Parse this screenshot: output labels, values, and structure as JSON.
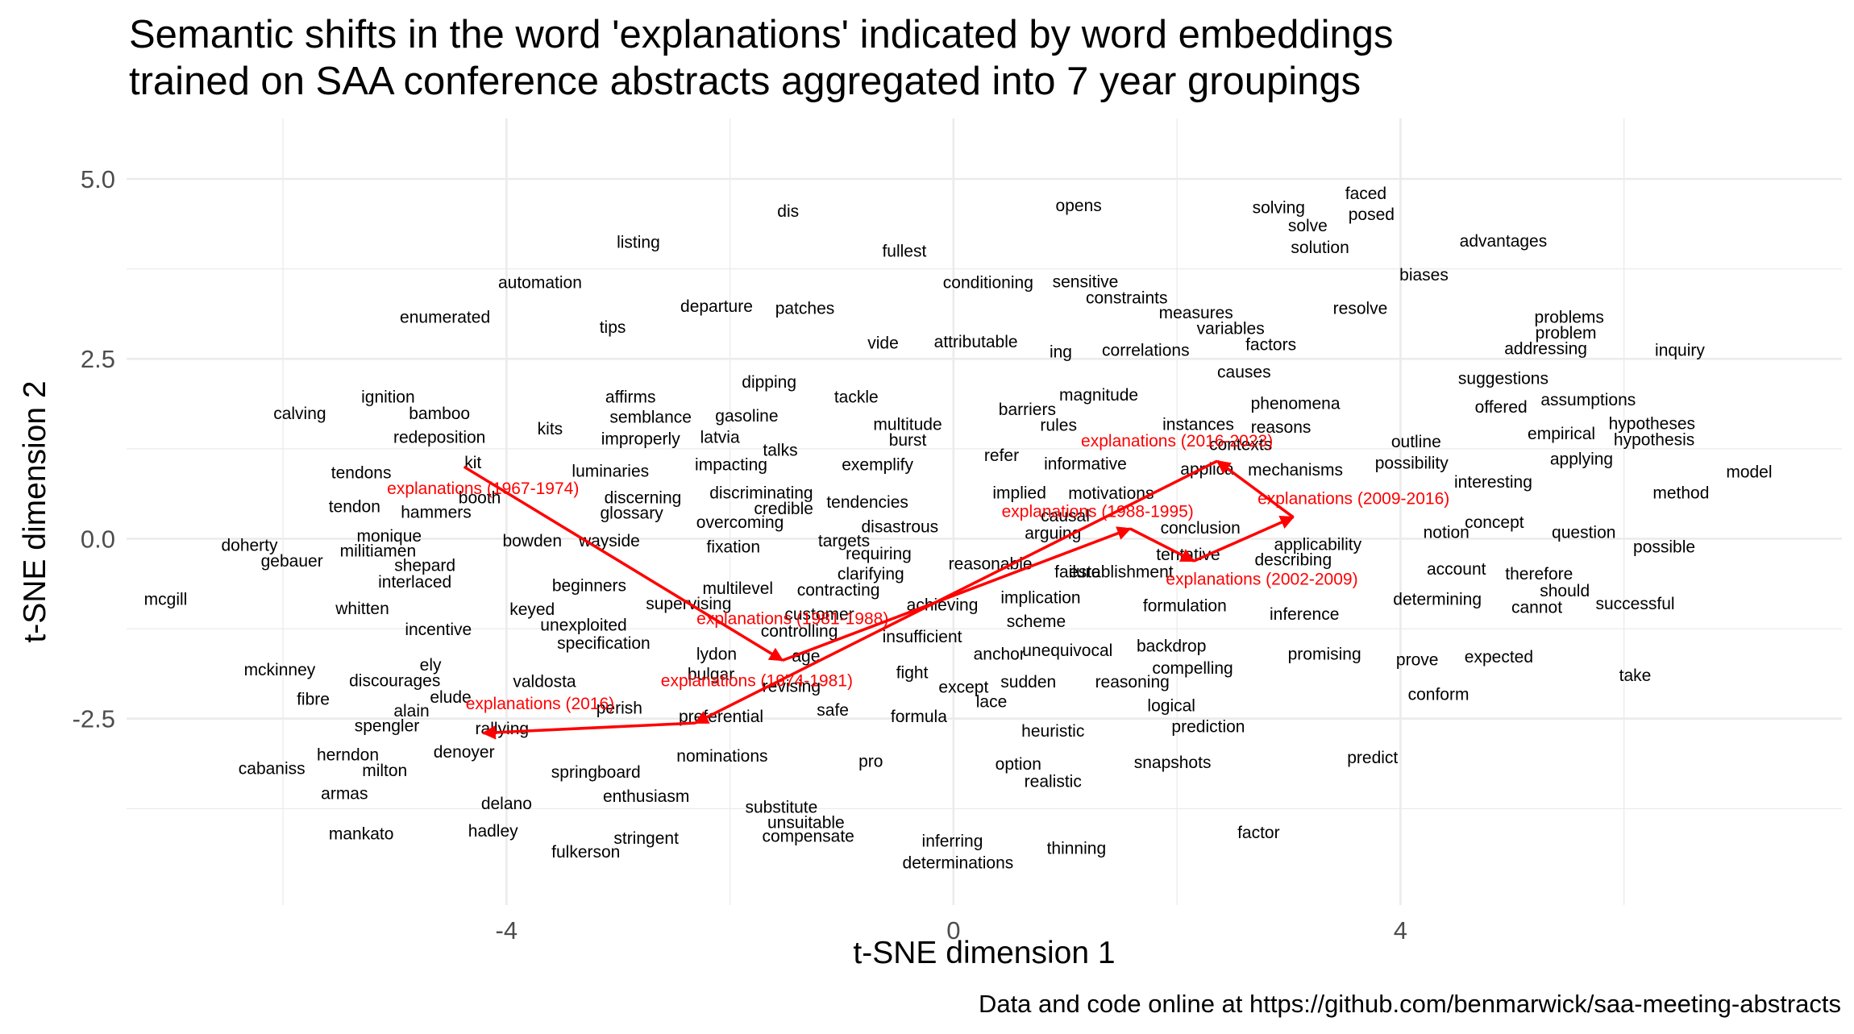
{
  "chart_data": {
    "type": "scatter",
    "title": "Semantic shifts in the word 'explanations' indicated by word embeddings\ntrained on SAA conference abstracts aggregated into 7 year groupings",
    "xlabel": "t-SNE dimension 1",
    "ylabel": "t-SNE dimension 2",
    "caption": "Data and code online at https://github.com/benmarwick/saa-meeting-abstracts",
    "xlim": [
      -7.4,
      7.95
    ],
    "ylim": [
      -5.09,
      5.84
    ],
    "xticks": [
      -4,
      0,
      4
    ],
    "yticks": [
      -2.5,
      0.0,
      2.5,
      5.0
    ],
    "ytick_labels": [
      "-2.5",
      "0.0",
      "2.5",
      "5.0"
    ],
    "grid": true,
    "colors": {
      "words": "#000000",
      "path": "#ff0000",
      "grid": "#ebebeb",
      "axis_text": "#4d4d4d"
    },
    "words": [
      {
        "text": "faced",
        "x": 3.69,
        "y": 4.8
      },
      {
        "text": "solving",
        "x": 2.91,
        "y": 4.6
      },
      {
        "text": "opens",
        "x": 1.12,
        "y": 4.63
      },
      {
        "text": "posed",
        "x": 3.74,
        "y": 4.51
      },
      {
        "text": "dis",
        "x": -1.48,
        "y": 4.55
      },
      {
        "text": "solve",
        "x": 3.17,
        "y": 4.35
      },
      {
        "text": "advantages",
        "x": 4.92,
        "y": 4.14
      },
      {
        "text": "listing",
        "x": -2.82,
        "y": 4.12
      },
      {
        "text": "solution",
        "x": 3.28,
        "y": 4.05
      },
      {
        "text": "fullest",
        "x": -0.44,
        "y": 4.0
      },
      {
        "text": "biases",
        "x": 4.21,
        "y": 3.67
      },
      {
        "text": "automation",
        "x": -3.7,
        "y": 3.56
      },
      {
        "text": "conditioning",
        "x": 0.31,
        "y": 3.56
      },
      {
        "text": "sensitive",
        "x": 1.18,
        "y": 3.57
      },
      {
        "text": "constraints",
        "x": 1.55,
        "y": 3.35
      },
      {
        "text": "resolve",
        "x": 3.64,
        "y": 3.2
      },
      {
        "text": "departure",
        "x": -2.12,
        "y": 3.23
      },
      {
        "text": "patches",
        "x": -1.33,
        "y": 3.2
      },
      {
        "text": "measures",
        "x": 2.17,
        "y": 3.14
      },
      {
        "text": "enumerated",
        "x": -4.55,
        "y": 3.08
      },
      {
        "text": "problems",
        "x": 5.51,
        "y": 3.08
      },
      {
        "text": "tips",
        "x": -3.05,
        "y": 2.94
      },
      {
        "text": "variables",
        "x": 2.48,
        "y": 2.92
      },
      {
        "text": "problem",
        "x": 5.48,
        "y": 2.86
      },
      {
        "text": "vide",
        "x": -0.63,
        "y": 2.72
      },
      {
        "text": "attributable",
        "x": 0.2,
        "y": 2.74
      },
      {
        "text": "factors",
        "x": 2.84,
        "y": 2.7
      },
      {
        "text": "ing",
        "x": 0.96,
        "y": 2.6
      },
      {
        "text": "correlations",
        "x": 1.72,
        "y": 2.62
      },
      {
        "text": "addressing",
        "x": 5.3,
        "y": 2.64
      },
      {
        "text": "inquiry",
        "x": 6.5,
        "y": 2.62
      },
      {
        "text": "causes",
        "x": 2.6,
        "y": 2.32
      },
      {
        "text": "suggestions",
        "x": 4.92,
        "y": 2.23
      },
      {
        "text": "dipping",
        "x": -1.65,
        "y": 2.18
      },
      {
        "text": "magnitude",
        "x": 1.3,
        "y": 2.0
      },
      {
        "text": "tackle",
        "x": -0.87,
        "y": 1.97
      },
      {
        "text": "affirms",
        "x": -2.89,
        "y": 1.97
      },
      {
        "text": "ignition",
        "x": -5.06,
        "y": 1.97
      },
      {
        "text": "phenomena",
        "x": 3.06,
        "y": 1.88
      },
      {
        "text": "assumptions",
        "x": 5.68,
        "y": 1.93
      },
      {
        "text": "offered",
        "x": 4.9,
        "y": 1.83
      },
      {
        "text": "calving",
        "x": -5.85,
        "y": 1.74
      },
      {
        "text": "bamboo",
        "x": -4.6,
        "y": 1.74
      },
      {
        "text": "semblance",
        "x": -2.71,
        "y": 1.69
      },
      {
        "text": "gasoline",
        "x": -1.85,
        "y": 1.71
      },
      {
        "text": "barriers",
        "x": 0.66,
        "y": 1.8
      },
      {
        "text": "multitude",
        "x": -0.41,
        "y": 1.59
      },
      {
        "text": "rules",
        "x": 0.94,
        "y": 1.58
      },
      {
        "text": "instances",
        "x": 2.19,
        "y": 1.59
      },
      {
        "text": "reasons",
        "x": 2.93,
        "y": 1.55
      },
      {
        "text": "hypotheses",
        "x": 6.25,
        "y": 1.6
      },
      {
        "text": "kits",
        "x": -3.61,
        "y": 1.53
      },
      {
        "text": "redeposition",
        "x": -4.6,
        "y": 1.41
      },
      {
        "text": "improperly",
        "x": -2.8,
        "y": 1.39
      },
      {
        "text": "latvia",
        "x": -2.09,
        "y": 1.41
      },
      {
        "text": "burst",
        "x": -0.41,
        "y": 1.37
      },
      {
        "text": "empirical",
        "x": 5.44,
        "y": 1.46
      },
      {
        "text": "hypothesis",
        "x": 6.27,
        "y": 1.38
      },
      {
        "text": "outline",
        "x": 4.14,
        "y": 1.35
      },
      {
        "text": "talks",
        "x": -1.55,
        "y": 1.23
      },
      {
        "text": "refer",
        "x": 0.43,
        "y": 1.16
      },
      {
        "text": "applying",
        "x": 5.62,
        "y": 1.11
      },
      {
        "text": "kit",
        "x": -4.3,
        "y": 1.06
      },
      {
        "text": "impacting",
        "x": -1.99,
        "y": 1.03
      },
      {
        "text": "exemplify",
        "x": -0.68,
        "y": 1.03
      },
      {
        "text": "informative",
        "x": 1.18,
        "y": 1.04
      },
      {
        "text": "possibility",
        "x": 4.1,
        "y": 1.05
      },
      {
        "text": "tendons",
        "x": -5.3,
        "y": 0.92
      },
      {
        "text": "luminaries",
        "x": -3.07,
        "y": 0.94
      },
      {
        "text": "mechanisms",
        "x": 3.06,
        "y": 0.96
      },
      {
        "text": "model",
        "x": 7.12,
        "y": 0.93
      },
      {
        "text": "interesting",
        "x": 4.83,
        "y": 0.79
      },
      {
        "text": "implied",
        "x": 0.59,
        "y": 0.64
      },
      {
        "text": "motivations",
        "x": 1.41,
        "y": 0.63
      },
      {
        "text": "discriminating",
        "x": -1.72,
        "y": 0.64
      },
      {
        "text": "method",
        "x": 6.51,
        "y": 0.64
      },
      {
        "text": "discerning",
        "x": -2.78,
        "y": 0.57
      },
      {
        "text": "tendencies",
        "x": -0.77,
        "y": 0.51
      },
      {
        "text": "booth",
        "x": -4.24,
        "y": 0.57
      },
      {
        "text": "credible",
        "x": -1.52,
        "y": 0.42
      },
      {
        "text": "tendon",
        "x": -5.36,
        "y": 0.45
      },
      {
        "text": "hammers",
        "x": -4.63,
        "y": 0.37
      },
      {
        "text": "glossary",
        "x": -2.88,
        "y": 0.36
      },
      {
        "text": "overcoming",
        "x": -1.91,
        "y": 0.23
      },
      {
        "text": "disastrous",
        "x": -0.48,
        "y": 0.17
      },
      {
        "text": "conclusion",
        "x": 2.21,
        "y": 0.15
      },
      {
        "text": "concept",
        "x": 4.84,
        "y": 0.23
      },
      {
        "text": "notion",
        "x": 4.41,
        "y": 0.09
      },
      {
        "text": "question",
        "x": 5.64,
        "y": 0.09
      },
      {
        "text": "arguing",
        "x": 0.89,
        "y": 0.08
      },
      {
        "text": "monique",
        "x": -5.05,
        "y": 0.04
      },
      {
        "text": "bowden",
        "x": -3.77,
        "y": -0.03
      },
      {
        "text": "wayside",
        "x": -3.08,
        "y": -0.03
      },
      {
        "text": "targets",
        "x": -0.98,
        "y": -0.03
      },
      {
        "text": "doherty",
        "x": -6.3,
        "y": -0.09
      },
      {
        "text": "fixation",
        "x": -1.97,
        "y": -0.11
      },
      {
        "text": "applicability",
        "x": 3.26,
        "y": -0.08
      },
      {
        "text": "possible",
        "x": 6.36,
        "y": -0.11
      },
      {
        "text": "militiamen",
        "x": -5.15,
        "y": -0.17
      },
      {
        "text": "requiring",
        "x": -0.67,
        "y": -0.21
      },
      {
        "text": "describing",
        "x": 3.04,
        "y": -0.29
      },
      {
        "text": "gebauer",
        "x": -5.92,
        "y": -0.31
      },
      {
        "text": "shepard",
        "x": -4.73,
        "y": -0.37
      },
      {
        "text": "reasonable",
        "x": 0.33,
        "y": -0.35
      },
      {
        "text": "clarifying",
        "x": -0.74,
        "y": -0.49
      },
      {
        "text": "failure",
        "x": 1.11,
        "y": -0.46
      },
      {
        "text": "account",
        "x": 4.5,
        "y": -0.42
      },
      {
        "text": "therefore",
        "x": 5.24,
        "y": -0.49
      },
      {
        "text": "interlaced",
        "x": -4.82,
        "y": -0.6
      },
      {
        "text": "beginners",
        "x": -3.26,
        "y": -0.65
      },
      {
        "text": "multilevel",
        "x": -1.93,
        "y": -0.69
      },
      {
        "text": "contracting",
        "x": -1.03,
        "y": -0.71
      },
      {
        "text": "should",
        "x": 5.47,
        "y": -0.72
      },
      {
        "text": "implication",
        "x": 0.78,
        "y": -0.82
      },
      {
        "text": "mcgill",
        "x": -7.05,
        "y": -0.84
      },
      {
        "text": "determining",
        "x": 4.33,
        "y": -0.84
      },
      {
        "text": "supervising",
        "x": -2.37,
        "y": -0.9
      },
      {
        "text": "achieving",
        "x": -0.1,
        "y": -0.92
      },
      {
        "text": "formulation",
        "x": 2.07,
        "y": -0.93
      },
      {
        "text": "successful",
        "x": 6.1,
        "y": -0.9
      },
      {
        "text": "cannot",
        "x": 5.22,
        "y": -0.95
      },
      {
        "text": "whitten",
        "x": -5.29,
        "y": -0.97
      },
      {
        "text": "keyed",
        "x": -3.77,
        "y": -0.98
      },
      {
        "text": "inference",
        "x": 3.14,
        "y": -1.05
      },
      {
        "text": "scheme",
        "x": 0.74,
        "y": -1.15
      },
      {
        "text": "unexploited",
        "x": -3.31,
        "y": -1.2
      },
      {
        "text": "incentive",
        "x": -4.61,
        "y": -1.26
      },
      {
        "text": "controlling",
        "x": -1.38,
        "y": -1.28
      },
      {
        "text": "insufficient",
        "x": -0.28,
        "y": -1.36
      },
      {
        "text": "specification",
        "x": -3.13,
        "y": -1.45
      },
      {
        "text": "backdrop",
        "x": 1.95,
        "y": -1.49
      },
      {
        "text": "anchor",
        "x": 0.41,
        "y": -1.6
      },
      {
        "text": "unequivocal",
        "x": 1.02,
        "y": -1.55
      },
      {
        "text": "promising",
        "x": 3.32,
        "y": -1.6
      },
      {
        "text": "lydon",
        "x": -2.12,
        "y": -1.6
      },
      {
        "text": "age",
        "x": -1.32,
        "y": -1.63
      },
      {
        "text": "ely",
        "x": -4.68,
        "y": -1.75
      },
      {
        "text": "expected",
        "x": 4.88,
        "y": -1.64
      },
      {
        "text": "prove",
        "x": 4.15,
        "y": -1.68
      },
      {
        "text": "compelling",
        "x": 2.14,
        "y": -1.8
      },
      {
        "text": "mckinney",
        "x": -6.03,
        "y": -1.82
      },
      {
        "text": "fight",
        "x": -0.37,
        "y": -1.86
      },
      {
        "text": "bulgar",
        "x": -2.17,
        "y": -1.88
      },
      {
        "text": "take",
        "x": 6.1,
        "y": -1.9
      },
      {
        "text": "discourages",
        "x": -5.0,
        "y": -1.97
      },
      {
        "text": "valdosta",
        "x": -3.66,
        "y": -1.98
      },
      {
        "text": "sudden",
        "x": 0.67,
        "y": -1.99
      },
      {
        "text": "reasoning",
        "x": 1.6,
        "y": -1.99
      },
      {
        "text": "except",
        "x": 0.09,
        "y": -2.06
      },
      {
        "text": "fibre",
        "x": -5.73,
        "y": -2.23
      },
      {
        "text": "elude",
        "x": -4.5,
        "y": -2.2
      },
      {
        "text": "conform",
        "x": 4.34,
        "y": -2.16
      },
      {
        "text": "lace",
        "x": 0.34,
        "y": -2.26
      },
      {
        "text": "logical",
        "x": 1.95,
        "y": -2.32
      },
      {
        "text": "alain",
        "x": -4.85,
        "y": -2.39
      },
      {
        "text": "perish",
        "x": -2.99,
        "y": -2.35
      },
      {
        "text": "safe",
        "x": -1.08,
        "y": -2.38
      },
      {
        "text": "preferential",
        "x": -2.08,
        "y": -2.47
      },
      {
        "text": "formula",
        "x": -0.31,
        "y": -2.47
      },
      {
        "text": "spengler",
        "x": -5.07,
        "y": -2.6
      },
      {
        "text": "rallying",
        "x": -4.04,
        "y": -2.64
      },
      {
        "text": "heuristic",
        "x": 0.89,
        "y": -2.67
      },
      {
        "text": "prediction",
        "x": 2.28,
        "y": -2.61
      },
      {
        "text": "denoyer",
        "x": -4.38,
        "y": -2.96
      },
      {
        "text": "herndon",
        "x": -5.42,
        "y": -3.0
      },
      {
        "text": "nominations",
        "x": -2.07,
        "y": -3.02
      },
      {
        "text": "predict",
        "x": 3.75,
        "y": -3.04
      },
      {
        "text": "snapshots",
        "x": 1.96,
        "y": -3.11
      },
      {
        "text": "pro",
        "x": -0.74,
        "y": -3.09
      },
      {
        "text": "option",
        "x": 0.58,
        "y": -3.13
      },
      {
        "text": "cabaniss",
        "x": -6.1,
        "y": -3.19
      },
      {
        "text": "milton",
        "x": -5.09,
        "y": -3.22
      },
      {
        "text": "springboard",
        "x": -3.2,
        "y": -3.24
      },
      {
        "text": "realistic",
        "x": 0.89,
        "y": -3.37
      },
      {
        "text": "armas",
        "x": -5.45,
        "y": -3.54
      },
      {
        "text": "enthusiasm",
        "x": -2.75,
        "y": -3.58
      },
      {
        "text": "delano",
        "x": -4.0,
        "y": -3.68
      },
      {
        "text": "substitute",
        "x": -1.54,
        "y": -3.73
      },
      {
        "text": "unsuitable",
        "x": -1.32,
        "y": -3.94
      },
      {
        "text": "hadley",
        "x": -4.12,
        "y": -4.06
      },
      {
        "text": "mankato",
        "x": -5.3,
        "y": -4.1
      },
      {
        "text": "factor",
        "x": 2.73,
        "y": -4.08
      },
      {
        "text": "compensate",
        "x": -1.3,
        "y": -4.13
      },
      {
        "text": "stringent",
        "x": -2.75,
        "y": -4.16
      },
      {
        "text": "inferring",
        "x": -0.01,
        "y": -4.2
      },
      {
        "text": "thinning",
        "x": 1.1,
        "y": -4.3
      },
      {
        "text": "fulkerson",
        "x": -3.29,
        "y": -4.35
      },
      {
        "text": "determinations",
        "x": 0.04,
        "y": -4.5
      },
      {
        "text": "applica",
        "x": 2.27,
        "y": 0.97
      },
      {
        "text": "contexts",
        "x": 2.57,
        "y": 1.31
      },
      {
        "text": "establishment",
        "x": 1.5,
        "y": -0.46
      },
      {
        "text": "tentative",
        "x": 2.1,
        "y": -0.22
      },
      {
        "text": "customer",
        "x": -1.2,
        "y": -1.05
      },
      {
        "text": "revising",
        "x": -1.45,
        "y": -2.05
      },
      {
        "text": "causal",
        "x": 1.0,
        "y": 0.32
      }
    ],
    "series": [
      {
        "name": "explanations (1967-1974)",
        "label": "explanations (1967-1974)",
        "x": -4.38,
        "y": 1.0,
        "label_x": -4.21,
        "label_y": 0.7
      },
      {
        "name": "explanations (1974-1981)",
        "label": "explanations (1974-1981)",
        "x": -1.53,
        "y": -1.69,
        "label_x": -1.76,
        "label_y": -1.97
      },
      {
        "name": "explanations (1981-1988)",
        "label": "explanations (1981-1988)",
        "x": 1.58,
        "y": 0.14,
        "label_x": -1.44,
        "label_y": -1.11
      },
      {
        "name": "explanations (1988-1995)",
        "label": "explanations (1988-1995)",
        "x": 2.15,
        "y": -0.31,
        "label_x": 1.29,
        "label_y": 0.38
      },
      {
        "name": "explanations (2002-2009)",
        "label": "explanations (2002-2009)",
        "x": 3.04,
        "y": 0.3,
        "label_x": 2.76,
        "label_y": -0.56
      },
      {
        "name": "explanations (2009-2016)",
        "label": "explanations (2009-2016)",
        "x": 2.36,
        "y": 1.08,
        "label_x": 3.58,
        "label_y": 0.56
      },
      {
        "name": "explanations (2016-2023)",
        "label": "explanations (2016-2023)",
        "x": -2.31,
        "y": -2.56,
        "label_x": 2.0,
        "label_y": 1.36
      },
      {
        "name": "explanations (2016)",
        "label": "explanations (2016)",
        "x": -4.21,
        "y": -2.7,
        "label_x": -3.7,
        "label_y": -2.29
      }
    ]
  }
}
